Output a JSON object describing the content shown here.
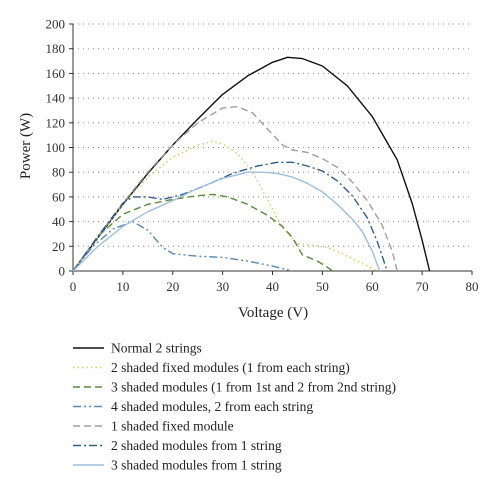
{
  "chart_data": {
    "type": "line",
    "title": "",
    "xlabel": "Voltage (V)",
    "ylabel": "Power (W)",
    "xlim": [
      0,
      80
    ],
    "ylim": [
      0,
      200
    ],
    "xticks": [
      0,
      10,
      20,
      30,
      40,
      50,
      60,
      70,
      80
    ],
    "yticks": [
      0,
      20,
      40,
      60,
      80,
      100,
      120,
      140,
      160,
      180,
      200
    ],
    "grid": "horizontal-dotted",
    "legend_position": "bottom",
    "series": [
      {
        "name": "Normal 2 strings",
        "color": "#111111",
        "dash": "solid",
        "points": [
          [
            0,
            0
          ],
          [
            5,
            27
          ],
          [
            10,
            54
          ],
          [
            15,
            79
          ],
          [
            20,
            102
          ],
          [
            25,
            123
          ],
          [
            30,
            143
          ],
          [
            35,
            158
          ],
          [
            40,
            169
          ],
          [
            43,
            173
          ],
          [
            46,
            172
          ],
          [
            50,
            166
          ],
          [
            55,
            150
          ],
          [
            60,
            125
          ],
          [
            65,
            90
          ],
          [
            68,
            55
          ],
          [
            70,
            25
          ],
          [
            71.5,
            0
          ]
        ]
      },
      {
        "name": "2 shaded fixed modules (1 from each string)",
        "color": "#c6d36a",
        "dash": "dotted",
        "points": [
          [
            0,
            0
          ],
          [
            5,
            27
          ],
          [
            10,
            54
          ],
          [
            15,
            76
          ],
          [
            20,
            92
          ],
          [
            25,
            102
          ],
          [
            28,
            105
          ],
          [
            30,
            103
          ],
          [
            33,
            95
          ],
          [
            36,
            80
          ],
          [
            39,
            58
          ],
          [
            42,
            35
          ],
          [
            45,
            22
          ],
          [
            48,
            21
          ],
          [
            51,
            19
          ],
          [
            54,
            14
          ],
          [
            57,
            8
          ],
          [
            60,
            2
          ],
          [
            61,
            0
          ]
        ]
      },
      {
        "name": "3 shaded modules (1 from 1st and 2 from 2nd string)",
        "color": "#5a8a3c",
        "dash": "dashed",
        "points": [
          [
            0,
            0
          ],
          [
            5,
            28
          ],
          [
            10,
            46
          ],
          [
            15,
            54
          ],
          [
            20,
            58
          ],
          [
            25,
            61
          ],
          [
            28,
            62
          ],
          [
            31,
            60
          ],
          [
            35,
            54
          ],
          [
            39,
            45
          ],
          [
            42,
            36
          ],
          [
            44,
            27
          ],
          [
            46,
            13
          ],
          [
            49,
            8
          ],
          [
            51,
            3
          ],
          [
            52,
            0
          ]
        ]
      },
      {
        "name": "4 shaded modules, 2 from each string",
        "color": "#5b88b8",
        "dash": "dashdotdot",
        "points": [
          [
            0,
            0
          ],
          [
            4,
            20
          ],
          [
            8,
            34
          ],
          [
            12,
            40
          ],
          [
            15,
            33
          ],
          [
            18,
            19
          ],
          [
            20,
            14
          ],
          [
            25,
            12
          ],
          [
            30,
            11
          ],
          [
            35,
            8
          ],
          [
            40,
            4
          ],
          [
            44,
            0
          ]
        ]
      },
      {
        "name": "1 shaded fixed module",
        "color": "#9e9e9e",
        "dash": "dashed",
        "points": [
          [
            0,
            0
          ],
          [
            5,
            28
          ],
          [
            10,
            55
          ],
          [
            15,
            80
          ],
          [
            20,
            102
          ],
          [
            25,
            120
          ],
          [
            30,
            132
          ],
          [
            33,
            133
          ],
          [
            36,
            128
          ],
          [
            39,
            115
          ],
          [
            42,
            102
          ],
          [
            44,
            98
          ],
          [
            47,
            96
          ],
          [
            50,
            91
          ],
          [
            53,
            84
          ],
          [
            56,
            72
          ],
          [
            59,
            57
          ],
          [
            62,
            37
          ],
          [
            64,
            16
          ],
          [
            65,
            0
          ]
        ]
      },
      {
        "name": "2 shaded modules from 1 string",
        "color": "#2f5d91",
        "dash": "dashdot",
        "points": [
          [
            0,
            0
          ],
          [
            5,
            28
          ],
          [
            10,
            55
          ],
          [
            12,
            60
          ],
          [
            15,
            60
          ],
          [
            18,
            58
          ],
          [
            22,
            62
          ],
          [
            27,
            70
          ],
          [
            32,
            79
          ],
          [
            37,
            85
          ],
          [
            41,
            88
          ],
          [
            44,
            88
          ],
          [
            47,
            85
          ],
          [
            50,
            81
          ],
          [
            53,
            73
          ],
          [
            56,
            61
          ],
          [
            59,
            43
          ],
          [
            61,
            24
          ],
          [
            63,
            0
          ]
        ]
      },
      {
        "name": "3 shaded modules from 1 string",
        "color": "#9cbfde",
        "dash": "solid",
        "points": [
          [
            0,
            0
          ],
          [
            5,
            20
          ],
          [
            10,
            36
          ],
          [
            15,
            48
          ],
          [
            20,
            57
          ],
          [
            25,
            67
          ],
          [
            30,
            75
          ],
          [
            35,
            80
          ],
          [
            38,
            80
          ],
          [
            41,
            79
          ],
          [
            44,
            76
          ],
          [
            47,
            71
          ],
          [
            50,
            64
          ],
          [
            53,
            54
          ],
          [
            56,
            42
          ],
          [
            58,
            32
          ],
          [
            60,
            16
          ],
          [
            61.5,
            0
          ]
        ]
      }
    ]
  }
}
